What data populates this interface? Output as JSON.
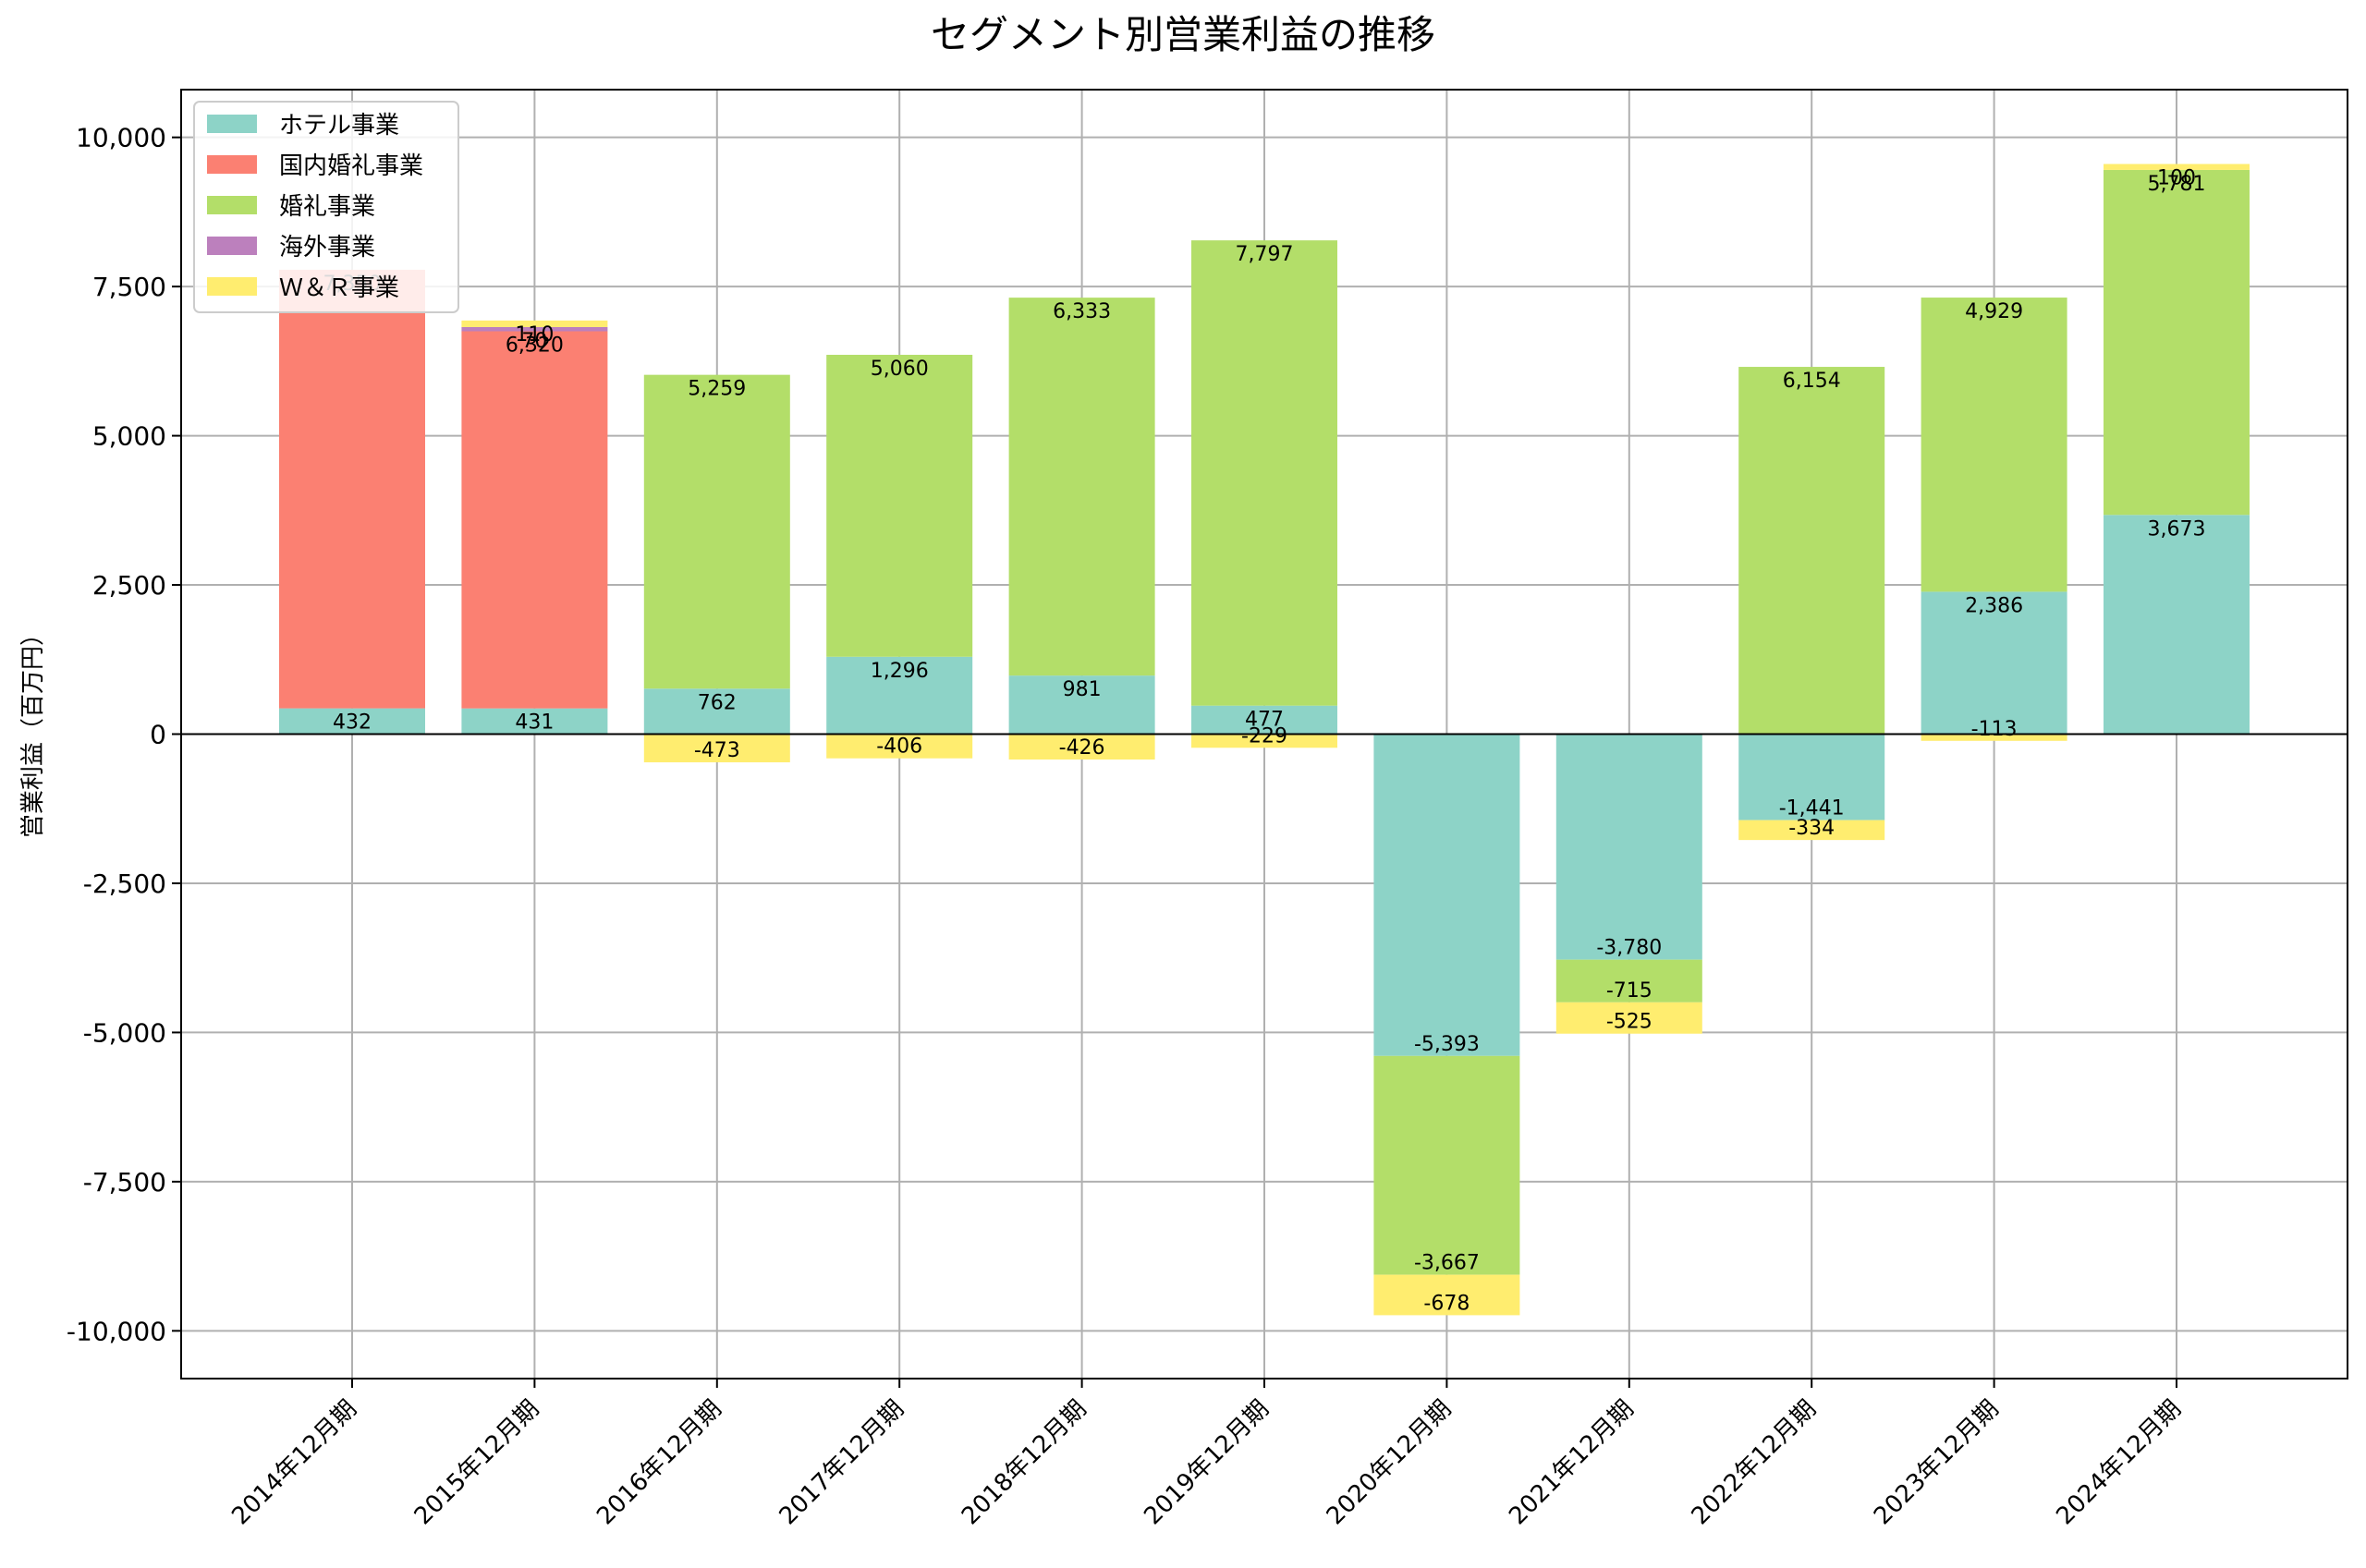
{
  "chart_data": {
    "type": "bar",
    "stacked": true,
    "title": "セグメント別営業利益の推移",
    "xlabel": "",
    "ylabel": "営業利益（百万円）",
    "ylim": [
      -10800,
      10800
    ],
    "yticks": [
      -10000,
      -7500,
      -5000,
      -2500,
      0,
      2500,
      5000,
      7500,
      10000
    ],
    "ytick_labels": [
      "-10,000",
      "-7,500",
      "-5,000",
      "-2,500",
      "0",
      "2,500",
      "5,000",
      "7,500",
      "10,000"
    ],
    "grid": true,
    "legend_position": "upper-left",
    "categories": [
      "2014年12月期",
      "2015年12月期",
      "2016年12月期",
      "2017年12月期",
      "2018年12月期",
      "2019年12月期",
      "2020年12月期",
      "2021年12月期",
      "2022年12月期",
      "2023年12月期",
      "2024年12月期"
    ],
    "series": [
      {
        "name": "ホテル事業",
        "color": "#8dd3c7",
        "values": [
          432,
          431,
          762,
          1296,
          981,
          477,
          -5393,
          -3780,
          -1441,
          2386,
          3673
        ],
        "labels": [
          "432",
          "431",
          "762",
          "1,296",
          "981",
          "477",
          "-5,393",
          "-3,780",
          "-1,441",
          "2,386",
          "3,673"
        ]
      },
      {
        "name": "国内婚礼事業",
        "color": "#fb8072",
        "values": [
          7350,
          6320,
          null,
          null,
          null,
          null,
          null,
          null,
          null,
          null,
          null
        ],
        "labels": [
          "7,350",
          "6,320",
          "",
          "",
          "",
          "",
          "",
          "",
          "",
          "",
          ""
        ]
      },
      {
        "name": "婚礼事業",
        "color": "#b3de69",
        "values": [
          null,
          null,
          5259,
          5060,
          6333,
          7797,
          -3667,
          -715,
          6154,
          4929,
          5781
        ],
        "labels": [
          "",
          "",
          "5,259",
          "5,060",
          "6,333",
          "7,797",
          "-3,667",
          "-715",
          "6,154",
          "4,929",
          "5,781"
        ]
      },
      {
        "name": "海外事業",
        "color": "#bc80bd",
        "values": [
          null,
          70,
          null,
          null,
          null,
          null,
          null,
          null,
          null,
          null,
          null
        ],
        "labels": [
          "",
          "70",
          "",
          "",
          "",
          "",
          "",
          "",
          "",
          "",
          ""
        ]
      },
      {
        "name": "Ｗ＆Ｒ事業",
        "color": "#ffed6f",
        "values": [
          null,
          110,
          -473,
          -406,
          -426,
          -229,
          -678,
          -525,
          -334,
          -113,
          100
        ],
        "labels": [
          "",
          "110",
          "-473",
          "-406",
          "-426",
          "-229",
          "-678",
          "-525",
          "-334",
          "-113",
          "100"
        ]
      }
    ]
  }
}
